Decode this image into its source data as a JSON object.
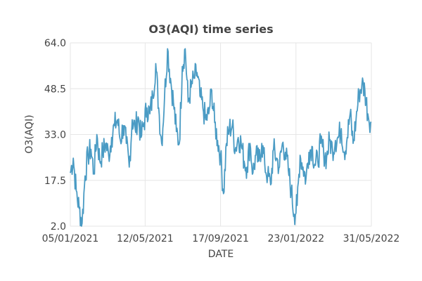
{
  "chart_data": {
    "type": "line",
    "title": "O3(AQI) time series",
    "xlabel": "DATE",
    "ylabel": "O3(AQI)",
    "x_range": [
      "2021-01-05",
      "2022-05-31"
    ],
    "ylim": [
      2.0,
      64.0
    ],
    "grid": true,
    "line_color": "#4a9bc4",
    "x_tick_labels": [
      "05/01/2021",
      "12/05/2021",
      "17/09/2021",
      "23/01/2022",
      "31/05/2022"
    ],
    "x_tick_dates": [
      "2021-01-05",
      "2021-05-12",
      "2021-09-17",
      "2022-01-23",
      "2022-05-31"
    ],
    "y_tick_labels": [
      "2.0",
      "17.5",
      "33.0",
      "48.5",
      "64.0"
    ],
    "y_ticks": [
      2.0,
      17.5,
      33.0,
      48.5,
      64.0
    ],
    "series": [
      {
        "x": [
          "2021-01-05",
          "2021-01-10",
          "2021-01-15",
          "2021-01-20",
          "2021-01-25",
          "2021-01-30",
          "2021-02-04",
          "2021-02-09",
          "2021-02-14",
          "2021-02-19",
          "2021-02-24",
          "2021-03-01",
          "2021-03-06",
          "2021-03-11",
          "2021-03-16",
          "2021-03-21",
          "2021-03-26",
          "2021-03-31",
          "2021-04-05",
          "2021-04-10",
          "2021-04-15",
          "2021-04-20",
          "2021-04-25",
          "2021-04-30",
          "2021-05-05",
          "2021-05-10",
          "2021-05-15",
          "2021-05-20",
          "2021-05-25",
          "2021-05-30",
          "2021-06-04",
          "2021-06-09",
          "2021-06-14",
          "2021-06-19",
          "2021-06-24",
          "2021-06-29",
          "2021-07-04",
          "2021-07-09",
          "2021-07-14",
          "2021-07-19",
          "2021-07-24",
          "2021-07-29",
          "2021-08-03",
          "2021-08-08",
          "2021-08-13",
          "2021-08-18",
          "2021-08-23",
          "2021-08-28",
          "2021-09-02",
          "2021-09-07",
          "2021-09-12",
          "2021-09-17",
          "2021-09-22",
          "2021-09-27",
          "2021-10-02",
          "2021-10-07",
          "2021-10-12",
          "2021-10-17",
          "2021-10-22",
          "2021-10-27",
          "2021-11-01",
          "2021-11-06",
          "2021-11-11",
          "2021-11-16",
          "2021-11-21",
          "2021-11-26",
          "2021-12-01",
          "2021-12-06",
          "2021-12-11",
          "2021-12-16",
          "2021-12-21",
          "2021-12-26",
          "2021-12-31",
          "2022-01-05",
          "2022-01-10",
          "2022-01-15",
          "2022-01-20",
          "2022-01-25",
          "2022-01-30",
          "2022-02-04",
          "2022-02-09",
          "2022-02-14",
          "2022-02-19",
          "2022-02-24",
          "2022-03-01",
          "2022-03-06",
          "2022-03-11",
          "2022-03-16",
          "2022-03-21",
          "2022-03-26",
          "2022-03-31",
          "2022-04-05",
          "2022-04-10",
          "2022-04-15",
          "2022-04-20",
          "2022-04-25",
          "2022-04-30",
          "2022-05-05",
          "2022-05-10",
          "2022-05-15",
          "2022-05-20",
          "2022-05-25",
          "2022-05-31"
        ],
        "y": [
          20,
          25,
          14,
          8,
          3,
          19,
          26,
          28,
          20,
          33,
          24,
          27,
          30,
          26,
          32,
          36,
          38,
          31,
          36,
          30,
          22,
          38,
          35,
          39,
          32,
          37,
          42,
          40,
          46,
          57,
          42,
          30,
          46,
          62,
          52,
          44,
          34,
          30,
          56,
          62,
          44,
          49,
          52,
          54,
          46,
          42,
          38,
          40,
          48,
          37,
          31,
          26,
          13,
          30,
          35,
          36,
          28,
          32,
          30,
          24,
          22,
          30,
          20,
          26,
          24,
          30,
          23,
          19,
          16,
          28,
          25,
          22,
          30,
          27,
          21,
          14,
          6,
          9,
          26,
          22,
          18,
          27,
          29,
          23,
          24,
          30,
          27,
          25,
          31,
          28,
          31,
          32,
          35,
          27,
          32,
          40,
          30,
          38,
          47,
          50,
          48,
          40,
          37
        ]
      }
    ]
  }
}
